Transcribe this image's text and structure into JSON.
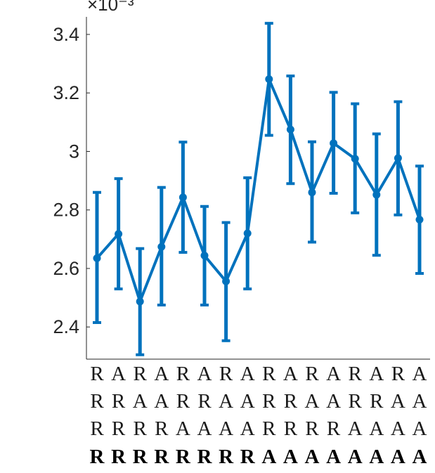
{
  "chart_data": {
    "type": "line",
    "title": "",
    "xlabel": "",
    "ylabel": "",
    "y_exponent_label": "×10⁻³",
    "ylim": [
      2.29,
      3.46
    ],
    "yticks": [
      2.4,
      2.6,
      2.8,
      3.0,
      3.2,
      3.4
    ],
    "ytick_labels": [
      "2.4",
      "2.6",
      "2.8",
      "3",
      "3.2",
      "3.4"
    ],
    "x_label_rows": [
      [
        "R",
        "A",
        "R",
        "A",
        "R",
        "A",
        "R",
        "A",
        "R",
        "A",
        "R",
        "A",
        "R",
        "A",
        "R",
        "A"
      ],
      [
        "R",
        "R",
        "A",
        "A",
        "R",
        "R",
        "A",
        "A",
        "R",
        "R",
        "A",
        "A",
        "R",
        "R",
        "A",
        "A"
      ],
      [
        "R",
        "R",
        "R",
        "R",
        "A",
        "A",
        "A",
        "A",
        "R",
        "R",
        "R",
        "R",
        "A",
        "A",
        "A",
        "A"
      ],
      [
        "R",
        "R",
        "R",
        "R",
        "R",
        "R",
        "R",
        "R",
        "A",
        "A",
        "A",
        "A",
        "A",
        "A",
        "A",
        "A"
      ]
    ],
    "series": [
      {
        "color": "#0072BD",
        "values": [
          2.635,
          2.718,
          2.487,
          2.674,
          2.843,
          2.644,
          2.556,
          2.72,
          3.247,
          3.075,
          2.86,
          3.028,
          2.975,
          2.852,
          2.977,
          2.767
        ],
        "lower": [
          2.415,
          2.53,
          2.305,
          2.475,
          2.655,
          2.475,
          2.353,
          2.53,
          3.055,
          2.89,
          2.69,
          2.857,
          2.79,
          2.645,
          2.783,
          2.583
        ],
        "upper": [
          2.86,
          2.907,
          2.668,
          2.877,
          3.032,
          2.812,
          2.757,
          2.91,
          3.438,
          3.258,
          3.033,
          3.202,
          3.163,
          3.06,
          3.17,
          2.95
        ]
      }
    ],
    "grid": false,
    "legend": "none"
  }
}
